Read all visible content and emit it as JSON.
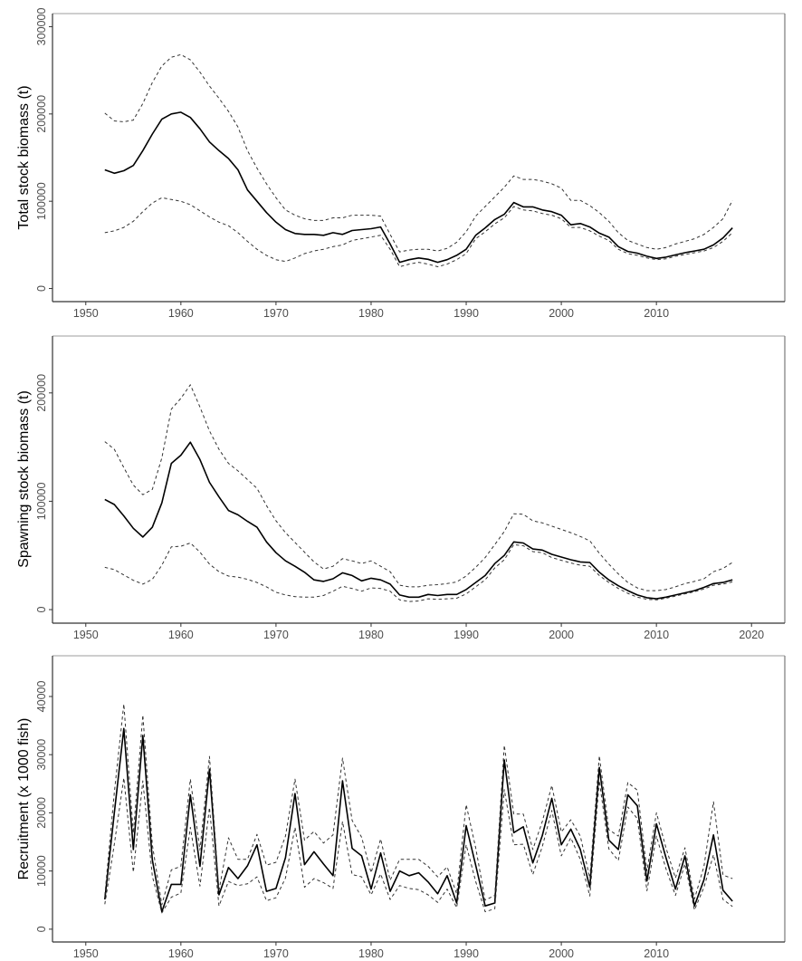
{
  "chart_data": [
    {
      "type": "line",
      "id": "total",
      "title": "",
      "xlabel": "",
      "ylabel": "Total stock biomass (t)",
      "xlim": [
        1946.5,
        2023.5
      ],
      "ylim": [
        -15000,
        315000
      ],
      "xticks": [
        1950,
        1960,
        1970,
        1980,
        1990,
        2000,
        2010
      ],
      "xtick_labels": [
        "1950",
        "1960",
        "1970",
        "1980",
        "1990",
        "2000",
        "2010"
      ],
      "yticks": [
        0,
        100000,
        200000,
        300000
      ],
      "ytick_labels": [
        "0",
        "100000",
        "200000",
        "300000"
      ],
      "grid": false,
      "x": [
        1952,
        1953,
        1954,
        1955,
        1956,
        1957,
        1958,
        1959,
        1960,
        1961,
        1962,
        1963,
        1964,
        1965,
        1966,
        1967,
        1968,
        1969,
        1970,
        1971,
        1972,
        1973,
        1974,
        1975,
        1976,
        1977,
        1978,
        1979,
        1980,
        1981,
        1982,
        1983,
        1984,
        1985,
        1986,
        1987,
        1988,
        1989,
        1990,
        1991,
        1992,
        1993,
        1994,
        1995,
        1996,
        1997,
        1998,
        1999,
        2000,
        2001,
        2002,
        2003,
        2004,
        2005,
        2006,
        2007,
        2008,
        2009,
        2010,
        2011,
        2012,
        2013,
        2014,
        2015,
        2016,
        2017,
        2018
      ],
      "series": [
        {
          "name": "estimate",
          "style": "solid",
          "values": [
            136000,
            132000,
            135000,
            141000,
            158000,
            177000,
            194000,
            200000,
            202000,
            196000,
            183000,
            168000,
            158000,
            149000,
            136000,
            113000,
            100000,
            87000,
            76000,
            67500,
            63000,
            62000,
            62000,
            61000,
            64000,
            62000,
            66500,
            67500,
            68500,
            70500,
            51000,
            30000,
            33000,
            35000,
            33500,
            30000,
            33000,
            38000,
            45000,
            61000,
            69500,
            79000,
            85000,
            98500,
            93500,
            93500,
            90000,
            88000,
            84000,
            73000,
            74500,
            70500,
            63500,
            59000,
            48000,
            42500,
            40500,
            37000,
            34500,
            36000,
            38500,
            41000,
            43000,
            45000,
            50000,
            58000,
            69500
          ]
        },
        {
          "name": "upper",
          "style": "dashed",
          "values": [
            201000,
            192000,
            191000,
            193000,
            212000,
            236000,
            255000,
            265000,
            268000,
            262000,
            248000,
            232000,
            218000,
            203000,
            185000,
            158000,
            138000,
            120000,
            104000,
            90000,
            84000,
            80000,
            78000,
            78000,
            81000,
            81000,
            84000,
            84000,
            84000,
            83000,
            62000,
            42000,
            44000,
            45000,
            45000,
            43000,
            46000,
            53000,
            65000,
            83000,
            94000,
            105000,
            116000,
            129000,
            125000,
            125000,
            123000,
            120000,
            115000,
            101000,
            101000,
            95000,
            87000,
            77000,
            64000,
            55000,
            51000,
            47000,
            45000,
            47000,
            51000,
            54000,
            57000,
            62000,
            70000,
            80000,
            101000
          ]
        },
        {
          "name": "lower",
          "style": "dashed",
          "values": [
            64000,
            66000,
            70000,
            77000,
            88000,
            98000,
            104000,
            102000,
            100000,
            96000,
            89000,
            82000,
            76000,
            72000,
            64000,
            54000,
            45000,
            38000,
            33000,
            31000,
            35000,
            40000,
            43000,
            45000,
            48000,
            50000,
            55000,
            57000,
            59000,
            61000,
            45000,
            25000,
            28000,
            30000,
            28000,
            25000,
            28000,
            33000,
            40000,
            57000,
            65000,
            74000,
            81000,
            94000,
            90000,
            89000,
            86000,
            84000,
            80000,
            70000,
            70000,
            66000,
            60000,
            55000,
            45000,
            40000,
            38000,
            35000,
            33000,
            34000,
            37000,
            39000,
            41000,
            43000,
            47000,
            54000,
            64000
          ]
        }
      ]
    },
    {
      "type": "line",
      "id": "spawning",
      "title": "",
      "xlabel": "",
      "ylabel": "Spawning stock biomass (t)",
      "xlim": [
        1946.5,
        2023.5
      ],
      "ylim": [
        -12500,
        252500
      ],
      "xticks": [
        1950,
        1960,
        1970,
        1980,
        1990,
        2000,
        2010,
        2020
      ],
      "xtick_labels": [
        "1950",
        "1960",
        "1970",
        "1980",
        "1990",
        "2000",
        "2010",
        "2020"
      ],
      "yticks": [
        0,
        100000,
        200000
      ],
      "ytick_labels": [
        "0",
        "100000",
        "200000"
      ],
      "grid": false,
      "x": [
        1952,
        1953,
        1954,
        1955,
        1956,
        1957,
        1958,
        1959,
        1960,
        1961,
        1962,
        1963,
        1964,
        1965,
        1966,
        1967,
        1968,
        1969,
        1970,
        1971,
        1972,
        1973,
        1974,
        1975,
        1976,
        1977,
        1978,
        1979,
        1980,
        1981,
        1982,
        1983,
        1984,
        1985,
        1986,
        1987,
        1988,
        1989,
        1990,
        1991,
        1992,
        1993,
        1994,
        1995,
        1996,
        1997,
        1998,
        1999,
        2000,
        2001,
        2002,
        2003,
        2004,
        2005,
        2006,
        2007,
        2008,
        2009,
        2010,
        2011,
        2012,
        2013,
        2014,
        2015,
        2016,
        2017,
        2018
      ],
      "series": [
        {
          "name": "estimate",
          "style": "solid",
          "values": [
            101700,
            97000,
            86500,
            75000,
            67000,
            76000,
            98500,
            135000,
            142500,
            154500,
            138500,
            117500,
            104000,
            91500,
            87500,
            81500,
            76000,
            62500,
            52500,
            45000,
            40000,
            34500,
            27500,
            26000,
            28500,
            34000,
            31500,
            26500,
            29000,
            27500,
            23500,
            13500,
            11500,
            11500,
            14000,
            13000,
            14000,
            14000,
            18500,
            25000,
            31500,
            42500,
            50000,
            62500,
            61500,
            56000,
            55000,
            51000,
            48500,
            46000,
            44000,
            43500,
            34500,
            27500,
            22000,
            17500,
            13500,
            11000,
            10000,
            11500,
            13500,
            15500,
            17500,
            20500,
            24000,
            25000,
            27500
          ]
        },
        {
          "name": "upper",
          "style": "dashed",
          "values": [
            155000,
            148000,
            131000,
            115000,
            106000,
            111000,
            140000,
            185000,
            195000,
            207500,
            187000,
            165000,
            148000,
            135000,
            128000,
            120000,
            112000,
            96000,
            82000,
            71000,
            62000,
            53000,
            44000,
            37500,
            40000,
            47000,
            45000,
            42500,
            45000,
            40000,
            35000,
            22500,
            21000,
            21000,
            22500,
            23000,
            24000,
            25500,
            31000,
            39000,
            48000,
            60000,
            72000,
            88500,
            88000,
            82000,
            80000,
            77000,
            74000,
            71000,
            67500,
            63500,
            52000,
            42000,
            33000,
            25000,
            20000,
            17500,
            17500,
            18500,
            21000,
            24000,
            26000,
            28500,
            35000,
            38000,
            43500
          ]
        },
        {
          "name": "lower",
          "style": "dashed",
          "values": [
            39000,
            37000,
            32000,
            27000,
            23500,
            28000,
            41000,
            58000,
            58500,
            61500,
            53000,
            42000,
            35000,
            31000,
            30000,
            28000,
            25000,
            21000,
            16000,
            13500,
            12000,
            11500,
            11500,
            13000,
            17000,
            21500,
            19500,
            17000,
            20000,
            19500,
            17000,
            9000,
            7500,
            8000,
            10000,
            9500,
            10000,
            10500,
            14500,
            21000,
            27500,
            38500,
            46000,
            60000,
            59000,
            53500,
            52500,
            48000,
            45500,
            43000,
            41000,
            40000,
            31500,
            25000,
            19500,
            15000,
            11500,
            9500,
            9000,
            10500,
            12500,
            14500,
            16500,
            19000,
            22500,
            23500,
            25500
          ]
        }
      ]
    },
    {
      "type": "line",
      "id": "recruitment",
      "title": "",
      "xlabel": "",
      "ylabel": "Recruitment (x 1000 fish)",
      "xlim": [
        1946.5,
        2023.5
      ],
      "ylim": [
        -2200,
        47000
      ],
      "xticks": [
        1950,
        1960,
        1970,
        1980,
        1990,
        2000,
        2010
      ],
      "xtick_labels": [
        "1950",
        "1960",
        "1970",
        "1980",
        "1990",
        "2000",
        "2010"
      ],
      "yticks": [
        0,
        10000,
        20000,
        30000,
        40000
      ],
      "ytick_labels": [
        "0",
        "10000",
        "20000",
        "30000",
        "40000"
      ],
      "grid": false,
      "x": [
        1952,
        1953,
        1954,
        1955,
        1956,
        1957,
        1958,
        1959,
        1960,
        1961,
        1962,
        1963,
        1964,
        1965,
        1966,
        1967,
        1968,
        1969,
        1970,
        1971,
        1972,
        1973,
        1974,
        1975,
        1976,
        1977,
        1978,
        1979,
        1980,
        1981,
        1982,
        1983,
        1984,
        1985,
        1986,
        1987,
        1988,
        1989,
        1990,
        1991,
        1992,
        1993,
        1994,
        1995,
        1996,
        1997,
        1998,
        1999,
        2000,
        2001,
        2002,
        2003,
        2004,
        2005,
        2006,
        2007,
        2008,
        2009,
        2010,
        2011,
        2012,
        2013,
        2014,
        2015,
        2016,
        2017,
        2018
      ],
      "series": [
        {
          "name": "estimate",
          "style": "solid",
          "values": [
            5100,
            20000,
            34500,
            13700,
            33300,
            11900,
            3000,
            7700,
            7700,
            23100,
            10800,
            27500,
            5900,
            10600,
            8700,
            10900,
            14500,
            6500,
            7000,
            12300,
            23300,
            11100,
            13300,
            11200,
            9200,
            25500,
            13900,
            12600,
            6900,
            13100,
            6500,
            10000,
            9200,
            9700,
            8100,
            6100,
            9200,
            4500,
            17800,
            11000,
            4000,
            4500,
            29100,
            16600,
            17600,
            11400,
            16100,
            22500,
            14500,
            17200,
            13700,
            7200,
            27800,
            15300,
            13700,
            23100,
            21200,
            8300,
            18100,
            12300,
            6900,
            12600,
            4000,
            8500,
            16200,
            6700,
            4800
          ]
        },
        {
          "name": "upper",
          "style": "dashed",
          "values": [
            5800,
            23500,
            38700,
            16500,
            36800,
            14500,
            4200,
            10200,
            10800,
            25800,
            13600,
            29700,
            6600,
            15700,
            12000,
            12000,
            16300,
            11000,
            11500,
            16000,
            25800,
            15300,
            16800,
            14800,
            16200,
            29400,
            18700,
            15800,
            9700,
            15500,
            8400,
            12000,
            12000,
            12000,
            10800,
            9000,
            10700,
            6100,
            21400,
            14000,
            5000,
            5800,
            31600,
            19800,
            19800,
            13700,
            18500,
            24700,
            16700,
            18800,
            16000,
            8800,
            29800,
            17100,
            16000,
            25200,
            23900,
            10000,
            20000,
            14000,
            8800,
            14000,
            5200,
            10800,
            21900,
            9300,
            8700
          ]
        },
        {
          "name": "lower",
          "style": "dashed",
          "values": [
            4300,
            14600,
            26000,
            9800,
            25500,
            9100,
            2800,
            5500,
            6200,
            17500,
            7400,
            20900,
            4000,
            8200,
            7500,
            7800,
            9000,
            4900,
            5400,
            8800,
            17500,
            7200,
            8700,
            8000,
            7000,
            18500,
            9400,
            9000,
            5900,
            9500,
            5100,
            7500,
            7000,
            6800,
            5900,
            4600,
            6900,
            3700,
            14500,
            8200,
            3000,
            3500,
            24000,
            14500,
            14600,
            9400,
            14200,
            20400,
            12600,
            15700,
            12000,
            5700,
            25500,
            13800,
            11800,
            21000,
            19000,
            6600,
            16000,
            10400,
            5800,
            11200,
            3300,
            7200,
            12800,
            5100,
            3900
          ]
        }
      ]
    }
  ]
}
